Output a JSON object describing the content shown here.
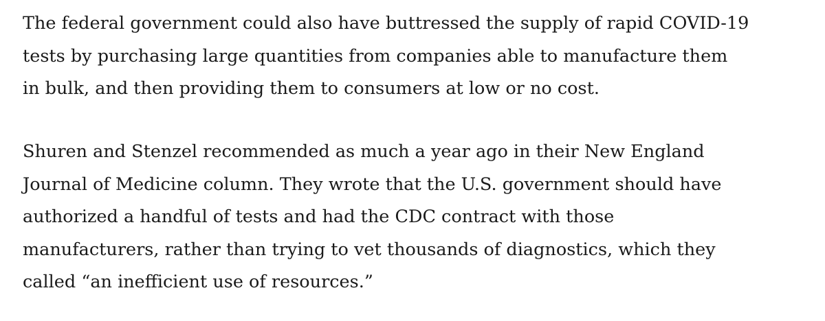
{
  "article": {
    "paragraphs": [
      {
        "lines": [
          "The federal government could also have buttressed the supply of rapid COVID-19",
          "tests by purchasing large quantities from companies able to manufacture them",
          "in bulk, and then providing them to consumers at low or no cost."
        ]
      },
      {
        "lines": [
          "Shuren and Stenzel recommended as much a year ago in their New England",
          "Journal of Medicine column. They wrote that the U.S. government should have",
          "authorized a handful of tests and had the CDC contract with those",
          "manufacturers, rather than trying to vet thousands of diagnostics, which they",
          "called “an inefficient use of resources.”"
        ]
      }
    ]
  }
}
